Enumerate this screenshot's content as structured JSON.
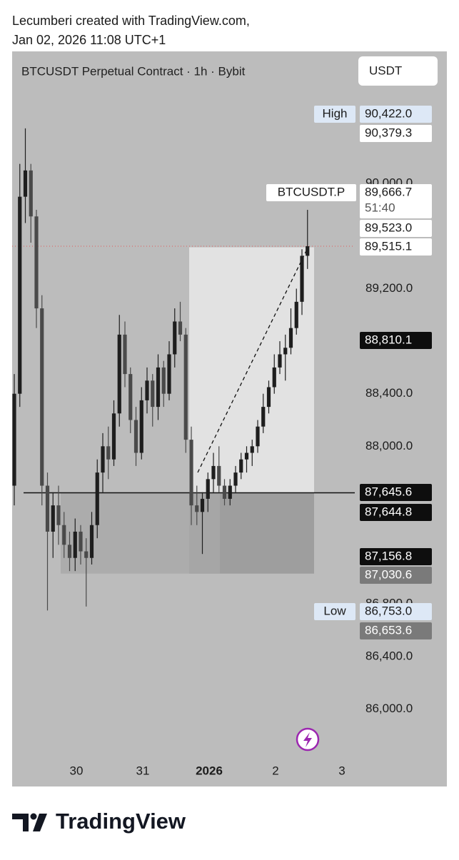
{
  "header": {
    "line1": "Lecumberi created with TradingView.com,",
    "line2": "Jan 02, 2026 11:08 UTC+1"
  },
  "chart_data": {
    "type": "candlestick",
    "title": "BTCUSDT Perpetual Contract · 1h · Bybit",
    "currency": "USDT",
    "symbol_label": "BTCUSDT.P",
    "countdown": "51:40",
    "categories": [
      "30",
      "31",
      "2026",
      "2",
      "3"
    ],
    "open": [
      87700,
      88400,
      89900,
      90100,
      89750,
      89050,
      87700,
      87350,
      87550,
      87400,
      87250,
      87150,
      87350,
      87200,
      87150,
      87400,
      87800,
      88000,
      87900,
      88250,
      88850,
      88550,
      88200,
      87950,
      88350,
      88500,
      88300,
      88600,
      88400,
      88700,
      88950,
      88850,
      88050,
      87550,
      87500,
      87600,
      87750,
      87850,
      87700,
      87600,
      87700,
      87800,
      87900,
      87950,
      88000,
      88150,
      88300,
      88450,
      88600,
      88700,
      88750,
      88900,
      89100,
      89450
    ],
    "high": [
      88550,
      90150,
      90420,
      90150,
      89800,
      89150,
      87800,
      87650,
      87700,
      87500,
      87350,
      87450,
      87400,
      87300,
      87500,
      87900,
      88100,
      88150,
      88350,
      89000,
      88950,
      88600,
      88300,
      88450,
      88600,
      88550,
      88700,
      88650,
      88800,
      89050,
      89100,
      88900,
      88150,
      87700,
      87650,
      87800,
      87950,
      88000,
      87750,
      87750,
      87850,
      87950,
      88000,
      88050,
      88200,
      88400,
      88500,
      88700,
      88800,
      88850,
      89050,
      89200,
      89500,
      89800
    ],
    "low": [
      87550,
      88300,
      89700,
      89550,
      88900,
      87550,
      86750,
      87150,
      87250,
      87150,
      87050,
      87050,
      87100,
      86780,
      87100,
      87300,
      87650,
      87750,
      87850,
      88150,
      88450,
      88100,
      87850,
      87900,
      88250,
      88150,
      88200,
      88300,
      88350,
      88600,
      88800,
      87950,
      87400,
      87400,
      87180,
      87500,
      87650,
      87650,
      87550,
      87550,
      87650,
      87750,
      87800,
      87850,
      87950,
      88100,
      88250,
      88400,
      88550,
      88500,
      88700,
      88850,
      89000,
      89350
    ],
    "close": [
      88400,
      89900,
      90100,
      89750,
      89050,
      87700,
      87350,
      87550,
      87400,
      87250,
      87150,
      87350,
      87200,
      87150,
      87400,
      87800,
      88000,
      87900,
      88250,
      88850,
      88550,
      88200,
      87950,
      88350,
      88500,
      88300,
      88600,
      88400,
      88700,
      88950,
      88850,
      88050,
      87550,
      87500,
      87600,
      87750,
      87850,
      87700,
      87600,
      87700,
      87800,
      87900,
      87950,
      88000,
      88150,
      88300,
      88450,
      88600,
      88700,
      88750,
      88900,
      89100,
      89450,
      89523
    ],
    "up_color": "#1e1e1e",
    "down_color": "#4a4a4a",
    "ylim": [
      85600,
      90800
    ],
    "yticks": [
      {
        "value": 86000,
        "label": "86,000.0"
      },
      {
        "value": 86400,
        "label": "86,400.0"
      },
      {
        "value": 86800,
        "label": "86,800.0"
      },
      {
        "value": 88000,
        "label": "88,000.0"
      },
      {
        "value": 88400,
        "label": "88,400.0"
      },
      {
        "value": 89200,
        "label": "89,200.0"
      },
      {
        "value": 90000,
        "label": "90,000.0"
      }
    ],
    "price_tags": [
      {
        "value": 90422.0,
        "label": "90,422.0",
        "tag": "High",
        "style": "blue"
      },
      {
        "value": 90379.3,
        "label": "90,379.3",
        "style": "white"
      },
      {
        "value": 89666.7,
        "label": "89,666.7",
        "style": "white"
      },
      {
        "value": 89523.0,
        "label": "89,523.0",
        "style": "white"
      },
      {
        "value": 89515.1,
        "label": "89,515.1",
        "style": "white"
      },
      {
        "value": 88810.1,
        "label": "88,810.1",
        "style": "dark"
      },
      {
        "value": 87645.6,
        "label": "87,645.6",
        "style": "dark"
      },
      {
        "value": 87644.8,
        "label": "87,644.8",
        "style": "dark"
      },
      {
        "value": 87156.8,
        "label": "87,156.8",
        "style": "dark"
      },
      {
        "value": 87030.6,
        "label": "87,030.6",
        "style": "gray"
      },
      {
        "value": 86753.0,
        "label": "86,753.0",
        "tag": "Low",
        "style": "blue"
      },
      {
        "value": 86653.6,
        "label": "86,653.6",
        "style": "gray"
      }
    ]
  },
  "footer": {
    "brand": "TradingView"
  }
}
